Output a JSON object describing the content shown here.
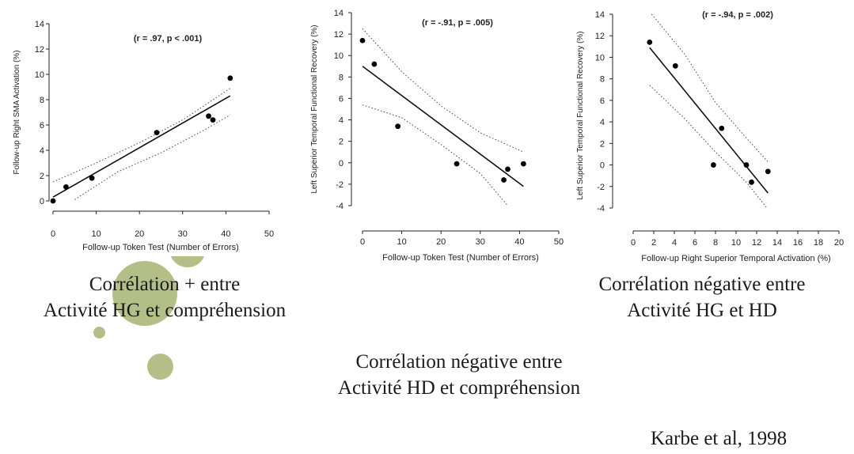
{
  "slide": {
    "captions": {
      "left": [
        "Corrélation + entre",
        "Activité HG et compréhension"
      ],
      "right": [
        "Corrélation négative entre",
        "Activité HG et HD"
      ],
      "center": [
        "Corrélation négative entre",
        "Activité HD et compréhension"
      ]
    },
    "citation": "Karbe et al, 1998",
    "colors": {
      "decor_green": "#b3bf86",
      "decor_green_light": "#d9e0bd",
      "text": "#1a1a1a"
    }
  },
  "chart_data": [
    {
      "type": "scatter",
      "annotation": "(r = .97, p < .001)",
      "xlabel": "Follow-up Token Test (Number of Errors)",
      "ylabel": "Follow-up Right SMA Activation (%)",
      "xlim": [
        0,
        50
      ],
      "ylim": [
        0,
        14
      ],
      "xticks": [
        0,
        10,
        20,
        30,
        40,
        50
      ],
      "yticks": [
        0,
        2,
        4,
        6,
        8,
        10,
        12,
        14
      ],
      "points": [
        [
          0,
          0
        ],
        [
          3,
          1.1
        ],
        [
          9,
          1.8
        ],
        [
          24,
          5.4
        ],
        [
          36,
          6.7
        ],
        [
          37,
          6.4
        ],
        [
          41,
          9.7
        ]
      ],
      "fit": [
        [
          0,
          0.3
        ],
        [
          41,
          8.3
        ]
      ],
      "ci_upper": [
        [
          0,
          1.5
        ],
        [
          10,
          3.0
        ],
        [
          20,
          4.6
        ],
        [
          30,
          6.4
        ],
        [
          41,
          8.9
        ]
      ],
      "ci_lower": [
        [
          5,
          0.1
        ],
        [
          15,
          2.3
        ],
        [
          25,
          3.8
        ],
        [
          35,
          5.6
        ],
        [
          41,
          6.8
        ]
      ]
    },
    {
      "type": "scatter",
      "annotation": "(r = -.91, p = .005)",
      "xlabel": "Follow-up Token Test (Number of Errors)",
      "ylabel": "Left Superior Temporal Functional Recovery (%)",
      "xlim": [
        0,
        50
      ],
      "ylim": [
        -4,
        14
      ],
      "xticks": [
        0,
        10,
        20,
        30,
        40,
        50
      ],
      "yticks": [
        -4,
        -2,
        0,
        2,
        4,
        6,
        8,
        10,
        12,
        14
      ],
      "points": [
        [
          0,
          11.4
        ],
        [
          3,
          9.2
        ],
        [
          9,
          3.4
        ],
        [
          24,
          -0.1
        ],
        [
          36,
          -1.6
        ],
        [
          37,
          -0.6
        ],
        [
          41,
          -0.1
        ]
      ],
      "fit": [
        [
          0,
          9.0
        ],
        [
          41,
          -2.2
        ]
      ],
      "ci_upper": [
        [
          0,
          12.5
        ],
        [
          10,
          8.5
        ],
        [
          20,
          5.3
        ],
        [
          30,
          2.8
        ],
        [
          41,
          1.0
        ]
      ],
      "ci_lower": [
        [
          0,
          5.4
        ],
        [
          10,
          4.2
        ],
        [
          20,
          1.7
        ],
        [
          30,
          -1.0
        ],
        [
          37,
          -4.0
        ]
      ]
    },
    {
      "type": "scatter",
      "annotation": "(r = -.94, p = .002)",
      "xlabel": "Follow-up Right Superior Temporal Activation (%)",
      "ylabel": "Left Superior Temporal Functional Recovery (%)",
      "xlim": [
        0,
        20
      ],
      "ylim": [
        -4,
        14
      ],
      "xticks": [
        0,
        2,
        4,
        6,
        8,
        10,
        12,
        14,
        16,
        18,
        20
      ],
      "yticks": [
        -4,
        -2,
        0,
        2,
        4,
        6,
        8,
        10,
        12,
        14
      ],
      "points": [
        [
          1.6,
          11.4
        ],
        [
          4.1,
          9.2
        ],
        [
          7.8,
          0.0
        ],
        [
          8.6,
          3.4
        ],
        [
          11.0,
          0.0
        ],
        [
          11.5,
          -1.6
        ],
        [
          13.1,
          -0.6
        ]
      ],
      "fit": [
        [
          1.6,
          10.9
        ],
        [
          13.1,
          -2.6
        ]
      ],
      "ci_upper": [
        [
          1.8,
          14.0
        ],
        [
          5,
          10.3
        ],
        [
          8,
          5.8
        ],
        [
          11,
          2.5
        ],
        [
          13.1,
          0.3
        ]
      ],
      "ci_lower": [
        [
          1.6,
          7.4
        ],
        [
          5,
          4.3
        ],
        [
          8,
          1.2
        ],
        [
          11,
          -1.6
        ],
        [
          13,
          -4.0
        ]
      ]
    }
  ]
}
